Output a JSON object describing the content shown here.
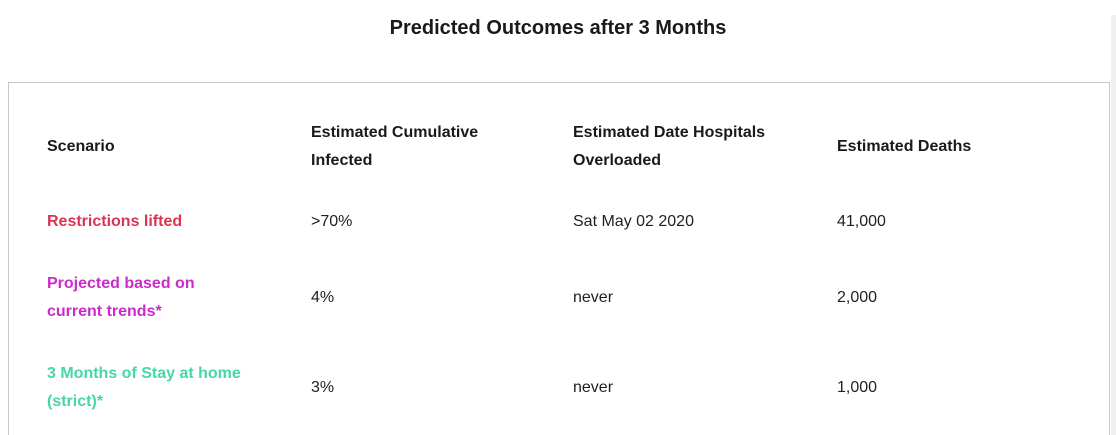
{
  "page": {
    "title": "Predicted Outcomes after 3 Months"
  },
  "table": {
    "headers": [
      "Scenario",
      "Estimated Cumulative Infected",
      "Estimated Date Hospitals Overloaded",
      "Estimated Deaths"
    ],
    "rows": [
      {
        "scenario": "Restrictions lifted",
        "color": "#dc3352",
        "infected": ">70%",
        "overloaded": "Sat May 02 2020",
        "deaths": "41,000"
      },
      {
        "scenario": "Projected based on current trends*",
        "color": "#cb2bcb",
        "infected": "4%",
        "overloaded": "never",
        "deaths": "2,000"
      },
      {
        "scenario": "3 Months of Stay at home (strict)*",
        "color": "#46d7a5",
        "infected": "3%",
        "overloaded": "never",
        "deaths": "1,000"
      }
    ]
  }
}
